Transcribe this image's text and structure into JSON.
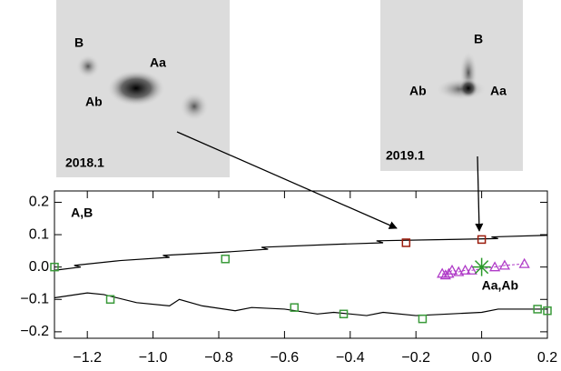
{
  "chart_data": {
    "type": "line",
    "xlim": [
      -1.3,
      0.2
    ],
    "ylim": [
      -0.22,
      0.235
    ],
    "xticks": [
      {
        "value": -1.2,
        "label": "−1.2"
      },
      {
        "value": -1.0,
        "label": "−1.0"
      },
      {
        "value": -0.8,
        "label": "−0.8"
      },
      {
        "value": -0.6,
        "label": "−0.6"
      },
      {
        "value": -0.4,
        "label": "−0.4"
      },
      {
        "value": -0.2,
        "label": "−0.2"
      },
      {
        "value": 0,
        "label": "0.0"
      },
      0.2
    ],
    "yticks": [
      0.2,
      0.1,
      {
        "value": 0,
        "label": "0.0"
      },
      {
        "value": -0.1,
        "label": "−0.1"
      },
      {
        "value": -0.2,
        "label": "−0.2"
      }
    ],
    "annotations": [
      {
        "text": "A,B",
        "x": -1.25,
        "y": 0.165
      },
      {
        "text": "Aa,Ab",
        "x": 0.0,
        "y": -0.06
      }
    ],
    "series": [
      {
        "kind": "line",
        "color": "#000000",
        "x": [
          -1.3,
          -1.22,
          -1.24,
          -1.1,
          -0.95,
          -0.97,
          -0.8,
          -0.65,
          -0.67,
          -0.45,
          -0.3,
          -0.32,
          -0.1,
          0.05,
          0.03,
          0.2
        ],
        "y": [
          -0.01,
          0.0,
          0.005,
          0.02,
          0.03,
          0.036,
          0.045,
          0.055,
          0.061,
          0.07,
          0.075,
          0.081,
          0.085,
          0.088,
          0.093,
          0.098
        ]
      },
      {
        "kind": "line",
        "color": "#000000",
        "x": [
          -1.3,
          -1.2,
          -1.15,
          -1.05,
          -0.95,
          -0.92,
          -0.85,
          -0.75,
          -0.7,
          -0.6,
          -0.5,
          -0.45,
          -0.35,
          -0.3,
          -0.2,
          -0.1,
          0.0,
          0.05,
          0.2
        ],
        "y": [
          -0.095,
          -0.08,
          -0.085,
          -0.11,
          -0.12,
          -0.1,
          -0.12,
          -0.135,
          -0.125,
          -0.13,
          -0.145,
          -0.14,
          -0.15,
          -0.14,
          -0.15,
          -0.145,
          -0.14,
          -0.13,
          -0.13
        ]
      },
      {
        "kind": "square",
        "color": "#3a9a3a",
        "x": [
          -1.3,
          -0.78,
          -1.13,
          -0.57,
          -0.42,
          -0.18,
          0.17,
          0.2
        ],
        "y": [
          0.0,
          0.025,
          -0.1,
          -0.125,
          -0.145,
          -0.16,
          -0.13,
          -0.135
        ]
      },
      {
        "kind": "square",
        "color": "#9b1c0c",
        "x": [
          -0.23,
          0.0
        ],
        "y": [
          0.075,
          0.085
        ]
      },
      {
        "kind": "triangle",
        "color": "#b03cc8",
        "x": [
          -0.12,
          -0.11,
          -0.1,
          -0.09,
          -0.07,
          -0.05,
          -0.03,
          0.04,
          0.07,
          0.13
        ],
        "y": [
          -0.02,
          -0.025,
          -0.02,
          -0.01,
          -0.015,
          -0.01,
          -0.01,
          0.0,
          0.005,
          0.01
        ]
      },
      {
        "kind": "asterisk",
        "color": "#2a9a2a",
        "x": [
          0.0
        ],
        "y": [
          0.0
        ]
      }
    ]
  },
  "insets": [
    {
      "labels": [
        "B",
        "Aa",
        "Ab"
      ],
      "epoch": "2018.1"
    },
    {
      "labels": [
        "B",
        "Ab",
        "Aa"
      ],
      "epoch": "2019.1"
    }
  ]
}
